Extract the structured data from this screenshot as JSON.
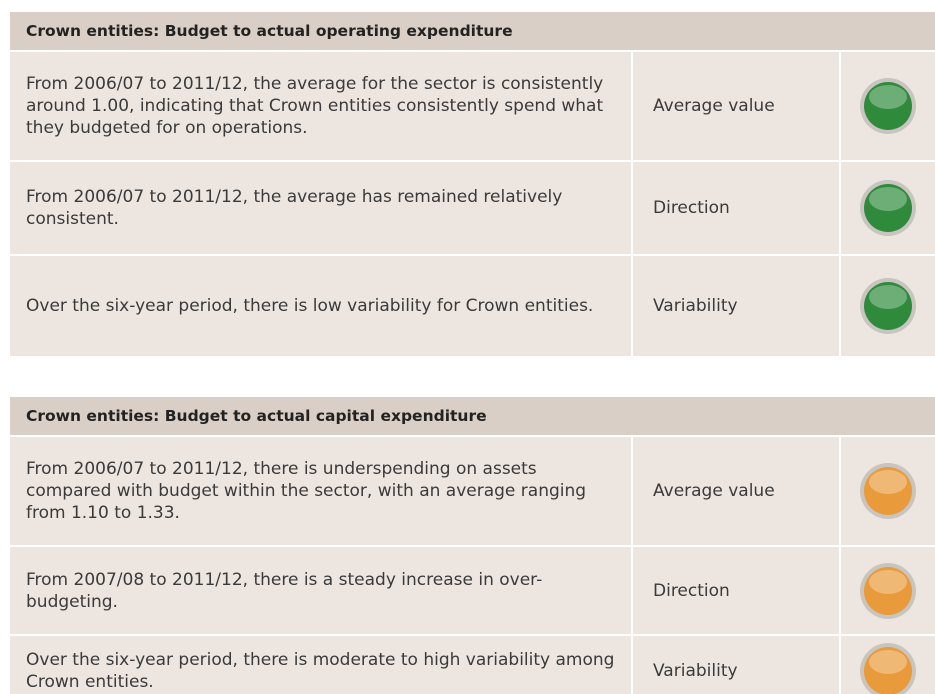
{
  "tables": [
    {
      "title": "Crown entities: Budget to actual operating expenditure",
      "light_color": "#2f8a3c",
      "rows": [
        [
          "From 2006/07 to 2011/12, the average for the sector is consistently around 1.00, indicating that Crown entities consistently spend what they budgeted for on operations.",
          "Average value"
        ],
        [
          "From 2006/07 to 2011/12, the average has remained relatively consistent.",
          "Direction"
        ],
        [
          "Over the six-year period, there is low variability for Crown entities.",
          "Variability"
        ]
      ]
    },
    {
      "title": "Crown entities: Budget to actual capital expenditure",
      "light_color": "#e99a3a",
      "rows": [
        [
          "From 2006/07 to 2011/12, there is underspending on assets compared with budget within the sector, with an average ranging from 1.10 to 1.33.",
          "Average value"
        ],
        [
          "From 2007/08 to 2011/12, there is a steady increase in over-budgeting.",
          "Direction"
        ],
        [
          "Over the six-year period, there is moderate to high variability among Crown entities.",
          "Variability"
        ]
      ]
    }
  ]
}
